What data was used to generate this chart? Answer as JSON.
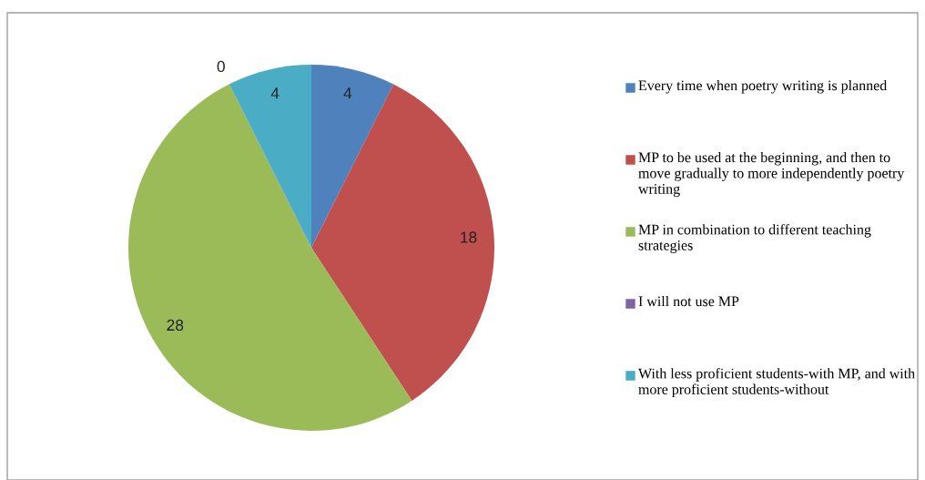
{
  "chart_data": {
    "type": "pie",
    "categories": [
      "Every time when poetry writing is planned",
      "MP to be used at the beginning, and then to move gradually to more independently poetry writing",
      "MP in combination to different teaching strategies",
      "I will not use MP",
      "With less proficient students-with MP, and with more proficient students-without"
    ],
    "values": [
      4,
      18,
      28,
      0,
      4
    ],
    "colors": [
      "#4f81bd",
      "#c0504d",
      "#9bbb59",
      "#8064a2",
      "#4bacc6"
    ],
    "value_labels": [
      "4",
      "18",
      "28",
      "0",
      "4"
    ],
    "legend": "right"
  }
}
